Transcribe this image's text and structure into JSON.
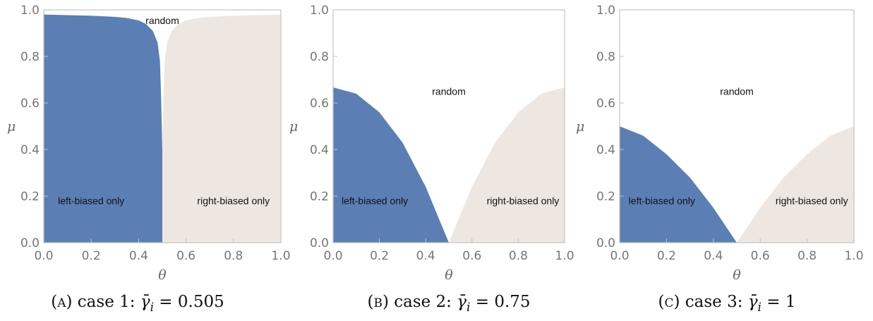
{
  "colors": {
    "left_region": "#5b7fb5",
    "right_region": "#eee6e0",
    "frame": "#c4c4c4"
  },
  "chart_data": [
    {
      "type": "area",
      "caption": {
        "prefix": "(",
        "letter": "A",
        "suffix": ") case 1: ",
        "symbol": "γ̄",
        "subscript": "i",
        "equals": " = 0.505"
      },
      "xlabel": "θ",
      "ylabel": "μ",
      "xlim": [
        0,
        1
      ],
      "ylim": [
        0,
        1
      ],
      "xticks": [
        "0.0",
        "0.2",
        "0.4",
        "0.6",
        "0.8",
        "1.0"
      ],
      "yticks": [
        "0.0",
        "0.2",
        "0.4",
        "0.6",
        "0.8",
        "1.0"
      ],
      "grid": false,
      "regions": [
        {
          "name": "left-biased only",
          "color": "#5b7fb5",
          "label_at": [
            0.2,
            0.18
          ],
          "boundary": [
            [
              0,
              0.98
            ],
            [
              0.2,
              0.975
            ],
            [
              0.3,
              0.97
            ],
            [
              0.35,
              0.965
            ],
            [
              0.4,
              0.955
            ],
            [
              0.43,
              0.94
            ],
            [
              0.46,
              0.91
            ],
            [
              0.48,
              0.86
            ],
            [
              0.49,
              0.78
            ],
            [
              0.495,
              0.62
            ],
            [
              0.5,
              0.4
            ],
            [
              0.5,
              0
            ]
          ]
        },
        {
          "name": "right-biased only",
          "color": "#eee6e0",
          "label_at": [
            0.8,
            0.18
          ],
          "boundary": [
            [
              0.5,
              0
            ],
            [
              0.5,
              0.4
            ],
            [
              0.505,
              0.62
            ],
            [
              0.51,
              0.78
            ],
            [
              0.52,
              0.86
            ],
            [
              0.54,
              0.91
            ],
            [
              0.57,
              0.94
            ],
            [
              0.6,
              0.955
            ],
            [
              0.65,
              0.965
            ],
            [
              0.7,
              0.97
            ],
            [
              0.8,
              0.975
            ],
            [
              1,
              0.98
            ]
          ]
        }
      ],
      "annotations": [
        {
          "text": "random",
          "at": [
            0.5,
            0.955
          ]
        }
      ]
    },
    {
      "type": "area",
      "caption": {
        "prefix": "(",
        "letter": "B",
        "suffix": ") case 2: ",
        "symbol": "γ̄",
        "subscript": "i",
        "equals": " = 0.75"
      },
      "xlabel": "θ",
      "ylabel": "μ",
      "xlim": [
        0,
        1
      ],
      "ylim": [
        0,
        1
      ],
      "xticks": [
        "0.0",
        "0.2",
        "0.4",
        "0.6",
        "0.8",
        "1.0"
      ],
      "yticks": [
        "0.0",
        "0.2",
        "0.4",
        "0.6",
        "0.8",
        "1.0"
      ],
      "grid": false,
      "regions": [
        {
          "name": "left-biased only",
          "color": "#5b7fb5",
          "label_at": [
            0.18,
            0.18
          ],
          "boundary": [
            [
              0,
              0.667
            ],
            [
              0.1,
              0.64
            ],
            [
              0.2,
              0.56
            ],
            [
              0.3,
              0.43
            ],
            [
              0.4,
              0.24
            ],
            [
              0.5,
              0
            ]
          ]
        },
        {
          "name": "right-biased only",
          "color": "#eee6e0",
          "label_at": [
            0.82,
            0.18
          ],
          "boundary": [
            [
              0.5,
              0
            ],
            [
              0.6,
              0.24
            ],
            [
              0.7,
              0.43
            ],
            [
              0.8,
              0.56
            ],
            [
              0.9,
              0.64
            ],
            [
              1,
              0.667
            ]
          ]
        }
      ],
      "annotations": [
        {
          "text": "random",
          "at": [
            0.5,
            0.65
          ]
        }
      ]
    },
    {
      "type": "area",
      "caption": {
        "prefix": "(",
        "letter": "C",
        "suffix": ") case 3: ",
        "symbol": "γ̄",
        "subscript": "i",
        "equals": " = 1"
      },
      "xlabel": "θ",
      "ylabel": "μ",
      "xlim": [
        0,
        1
      ],
      "ylim": [
        0,
        1
      ],
      "xticks": [
        "0.0",
        "0.2",
        "0.4",
        "0.6",
        "0.8",
        "1.0"
      ],
      "yticks": [
        "0.0",
        "0.2",
        "0.4",
        "0.6",
        "0.8",
        "1.0"
      ],
      "grid": false,
      "regions": [
        {
          "name": "left-biased only",
          "color": "#5b7fb5",
          "label_at": [
            0.18,
            0.18
          ],
          "boundary": [
            [
              0,
              0.5
            ],
            [
              0.1,
              0.46
            ],
            [
              0.2,
              0.38
            ],
            [
              0.3,
              0.28
            ],
            [
              0.4,
              0.15
            ],
            [
              0.5,
              0
            ]
          ]
        },
        {
          "name": "right-biased only",
          "color": "#eee6e0",
          "label_at": [
            0.82,
            0.18
          ],
          "boundary": [
            [
              0.5,
              0
            ],
            [
              0.6,
              0.15
            ],
            [
              0.7,
              0.28
            ],
            [
              0.8,
              0.38
            ],
            [
              0.9,
              0.46
            ],
            [
              1,
              0.5
            ]
          ]
        }
      ],
      "annotations": [
        {
          "text": "random",
          "at": [
            0.5,
            0.65
          ]
        }
      ]
    }
  ]
}
